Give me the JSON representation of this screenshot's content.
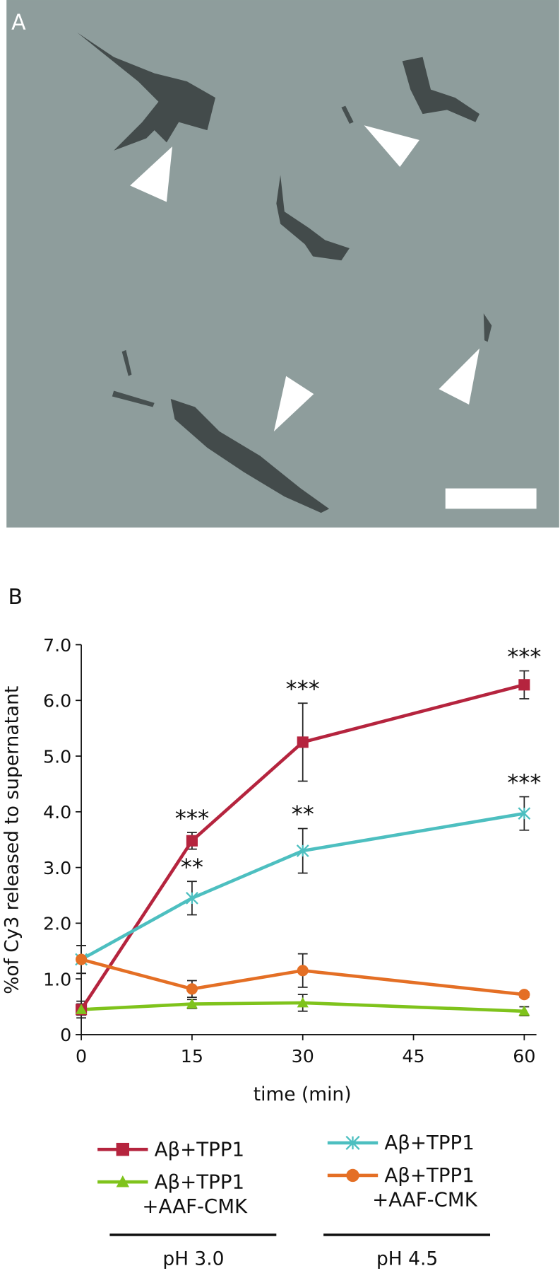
{
  "image": {
    "label": "A"
  },
  "chart_data": {
    "type": "line",
    "panel_label": "B",
    "xlabel": "time (min)",
    "ylabel": "%of Cy3 released to supernatant",
    "x": [
      0,
      15,
      30,
      60
    ],
    "xlim": [
      0,
      60
    ],
    "xticks": [
      0,
      15,
      30,
      45,
      60
    ],
    "ylim": [
      0,
      7
    ],
    "yticks": [
      0,
      {
        "value": 1,
        "label": "1.0"
      },
      {
        "value": 2,
        "label": "2.0"
      },
      {
        "value": 3,
        "label": "3.0"
      },
      {
        "value": 4,
        "label": "4.0"
      },
      {
        "value": 5,
        "label": "5.0"
      },
      {
        "value": 6,
        "label": "6.0"
      },
      {
        "value": 7,
        "label": "7.0"
      }
    ],
    "groups": [
      "pH 3.0",
      "pH 4.5"
    ],
    "series": [
      {
        "name": "Aβ+TPP1",
        "color": "#b5243e",
        "marker": "square",
        "values": [
          0.45,
          3.48,
          5.25,
          6.28
        ],
        "errors": [
          0.15,
          0.15,
          0.7,
          0.25
        ],
        "significance": [
          null,
          "***",
          "***",
          "***"
        ]
      },
      {
        "name": "Aβ+TPP1 +AAF-CMK",
        "color": "#7fc31c",
        "marker": "triangle",
        "values": [
          0.45,
          0.55,
          0.57,
          0.42
        ],
        "errors": [
          0.1,
          0.08,
          0.15,
          0.08
        ]
      },
      {
        "name": "Aβ+TPP1",
        "color": "#4dbfc0",
        "marker": "star",
        "values": [
          1.35,
          2.45,
          3.3,
          3.97
        ],
        "errors": [
          0.25,
          0.3,
          0.4,
          0.3
        ],
        "significance": [
          null,
          "**",
          "**",
          "***"
        ]
      },
      {
        "name": "Aβ+TPP1 +AAF-CMK",
        "color": "#e46f25",
        "marker": "circle",
        "values": [
          1.35,
          0.82,
          1.15,
          0.72
        ],
        "errors": [
          0.25,
          0.15,
          0.3,
          0.05
        ]
      }
    ]
  }
}
